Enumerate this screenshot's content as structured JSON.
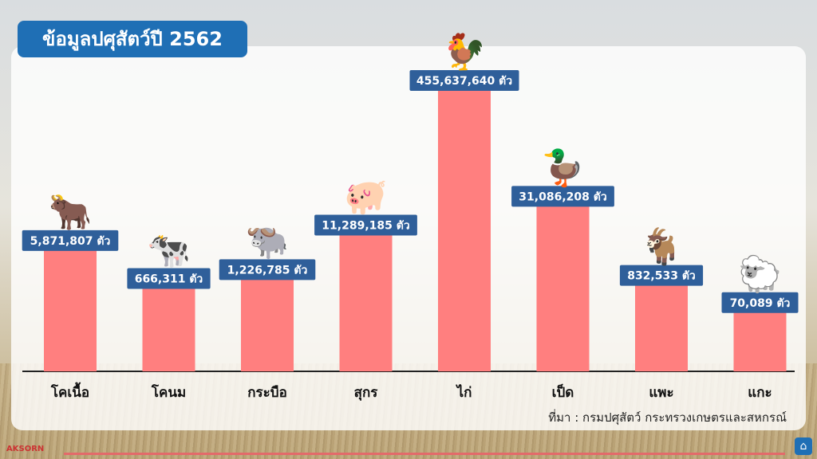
{
  "title": "ข้อมูลปศุสัตว์ปี 2562",
  "source": "ที่มา : กรมปศุสัตว์  กระทรวงเกษตรและสหกรณ์",
  "brand": "AKSORN",
  "colors": {
    "bar": "#ff7f7f",
    "label_bg": "#2f5f9a",
    "title_bg": "#1f6fb5"
  },
  "chart_data": {
    "type": "bar",
    "categories": [
      "โคเนื้อ",
      "โคนม",
      "กระบือ",
      "สุกร",
      "ไก่",
      "เป็ด",
      "แพะ",
      "แกะ"
    ],
    "values": [
      5871807,
      666311,
      1226785,
      11289185,
      455637640,
      31086208,
      832533,
      70089
    ],
    "data_labels": [
      "5,871,807 ตัว",
      "666,311 ตัว",
      "1,226,785 ตัว",
      "11,289,185 ตัว",
      "455,637,640 ตัว",
      "31,086,208 ตัว",
      "832,533 ตัว",
      "70,089 ตัว"
    ],
    "icons": [
      "beef-cattle-icon",
      "dairy-cow-icon",
      "buffalo-icon",
      "pig-icon",
      "chicken-icon",
      "duck-icon",
      "goat-icon",
      "sheep-icon"
    ],
    "scale": "non-linear (illustrative)",
    "grid": false
  }
}
